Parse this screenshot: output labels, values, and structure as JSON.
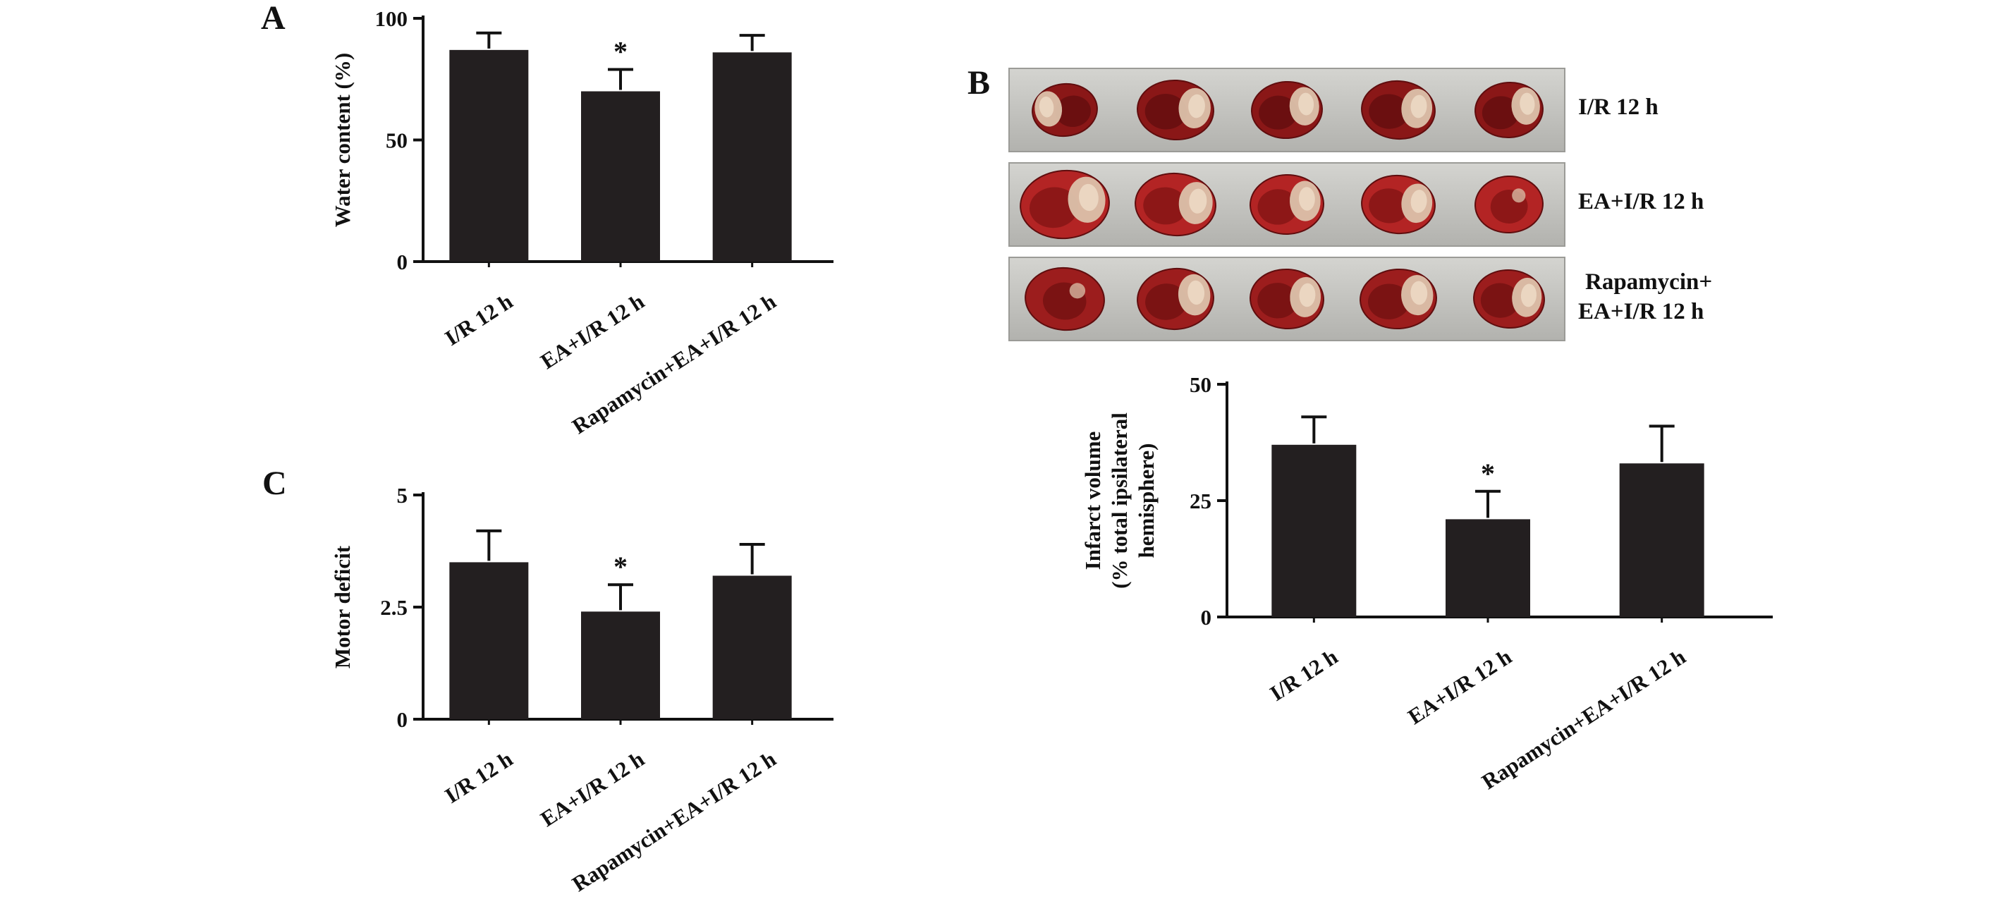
{
  "figure": {
    "panels": {
      "a": {
        "label": "A"
      },
      "b": {
        "label": "B"
      },
      "c": {
        "label": "C"
      }
    },
    "brain_rows": [
      {
        "label_lines": [
          "I/R 12 h"
        ]
      },
      {
        "label_lines": [
          "EA+I/R 12 h"
        ]
      },
      {
        "label_lines": [
          "Rapamycin+",
          "EA+I/R 12 h"
        ]
      }
    ],
    "significance_note": "*"
  },
  "chart_data": [
    {
      "id": "A",
      "type": "bar",
      "categories": [
        "I/R 12 h",
        "EA+I/R 12 h",
        "Rapamycin+EA+I/R 12 h"
      ],
      "values": [
        87,
        70,
        86
      ],
      "errors": [
        7,
        9,
        7
      ],
      "significance": [
        "",
        "*",
        ""
      ],
      "ylabel": "Water content (%)",
      "yticks": [
        0,
        50,
        100
      ],
      "ylim": [
        0,
        100
      ],
      "bar_color": "#231f20",
      "grid": false,
      "legend": false
    },
    {
      "id": "B",
      "type": "bar",
      "categories": [
        "I/R 12 h",
        "EA+I/R 12 h",
        "Rapamycin+EA+I/R 12 h"
      ],
      "values": [
        37,
        21,
        33
      ],
      "errors": [
        6,
        6,
        8
      ],
      "significance": [
        "",
        "*",
        ""
      ],
      "ylabel_lines": [
        "Infarct volume",
        "(% total ipsilateral",
        "hemisphere)"
      ],
      "yticks": [
        0,
        25,
        50
      ],
      "ylim": [
        0,
        50
      ],
      "bar_color": "#231f20",
      "grid": false,
      "legend": false
    },
    {
      "id": "C",
      "type": "bar",
      "categories": [
        "I/R 12 h",
        "EA+I/R 12 h",
        "Rapamycin+EA+I/R 12 h"
      ],
      "values": [
        3.5,
        2.4,
        3.2
      ],
      "errors": [
        0.7,
        0.6,
        0.7
      ],
      "significance": [
        "",
        "*",
        ""
      ],
      "ylabel": "Motor deficit",
      "yticks": [
        0,
        2.5,
        5
      ],
      "ylim": [
        0,
        5
      ],
      "bar_color": "#231f20",
      "grid": false,
      "legend": false
    }
  ]
}
